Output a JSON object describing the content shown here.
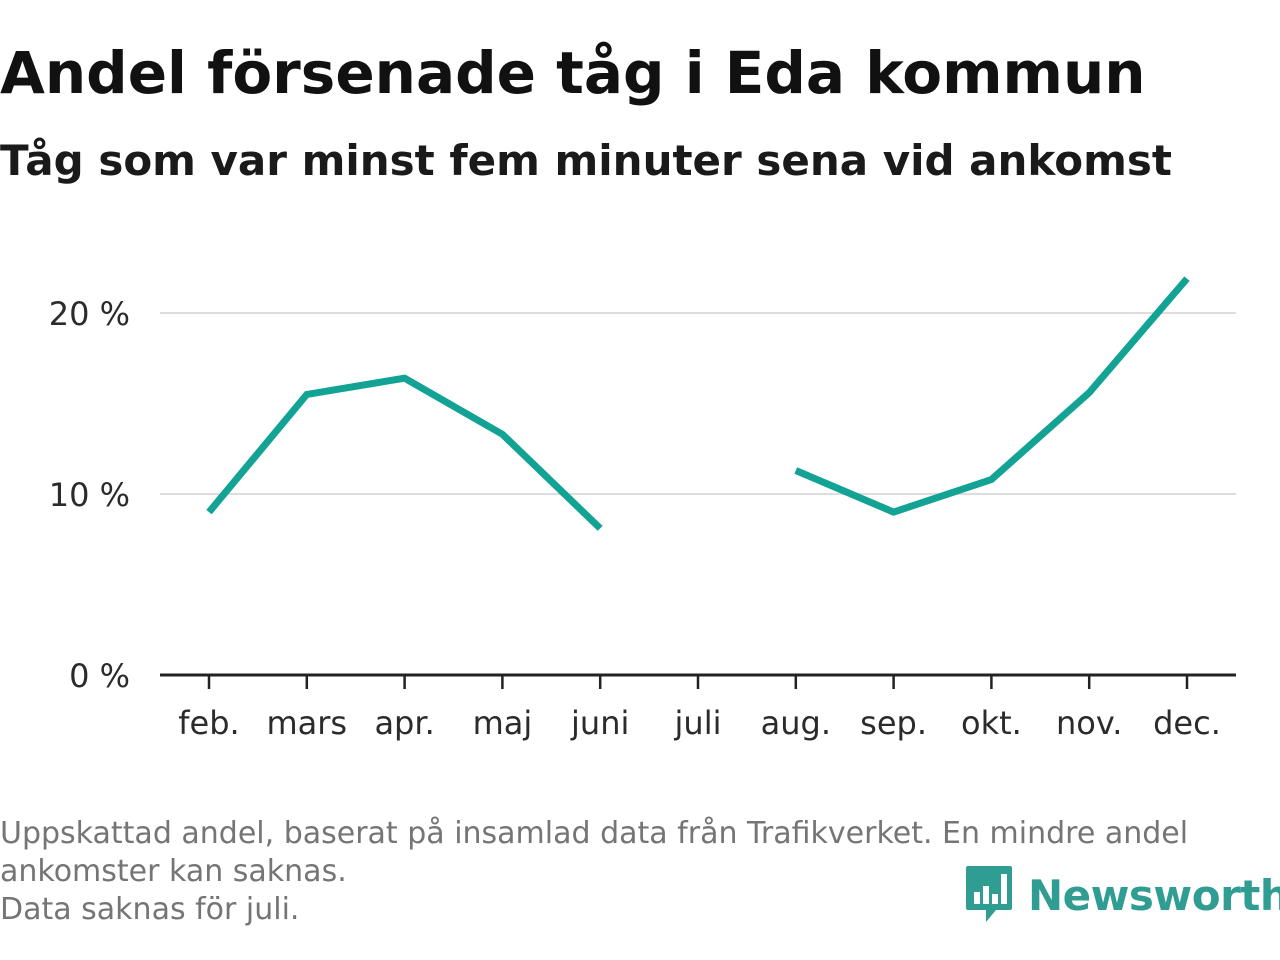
{
  "title": "Andel försenade tåg i Eda kommun",
  "subtitle": "Tåg som var minst fem minuter sena vid ankomst",
  "footer": {
    "note_line1": "Uppskattad andel, baserat på insamlad data från Trafikverket. En mindre andel ankomster kan saknas.",
    "note_line2": "Data saknas för juli."
  },
  "logo": {
    "text": "Newsworthy",
    "icon": "bar-chart-speech-bubble-icon"
  },
  "colors": {
    "line": "#12a395",
    "grid": "#dddddd",
    "axis": "#222222",
    "brand": "#2f9d91"
  },
  "chart_data": {
    "type": "line",
    "categories": [
      "feb.",
      "mars",
      "apr.",
      "maj",
      "juni",
      "juli",
      "aug.",
      "sep.",
      "okt.",
      "nov.",
      "dec."
    ],
    "series": [
      {
        "values": [
          9.0,
          15.5,
          16.4,
          13.3,
          8.1,
          null,
          11.3,
          9.0,
          10.8,
          15.6,
          21.9
        ]
      }
    ],
    "y_ticks": [
      0,
      10,
      20
    ],
    "y_tick_labels": [
      "0 %",
      "10 %",
      "20 %"
    ],
    "ylim": [
      0,
      24
    ],
    "unit": "%",
    "grid": true,
    "legend": "none"
  }
}
